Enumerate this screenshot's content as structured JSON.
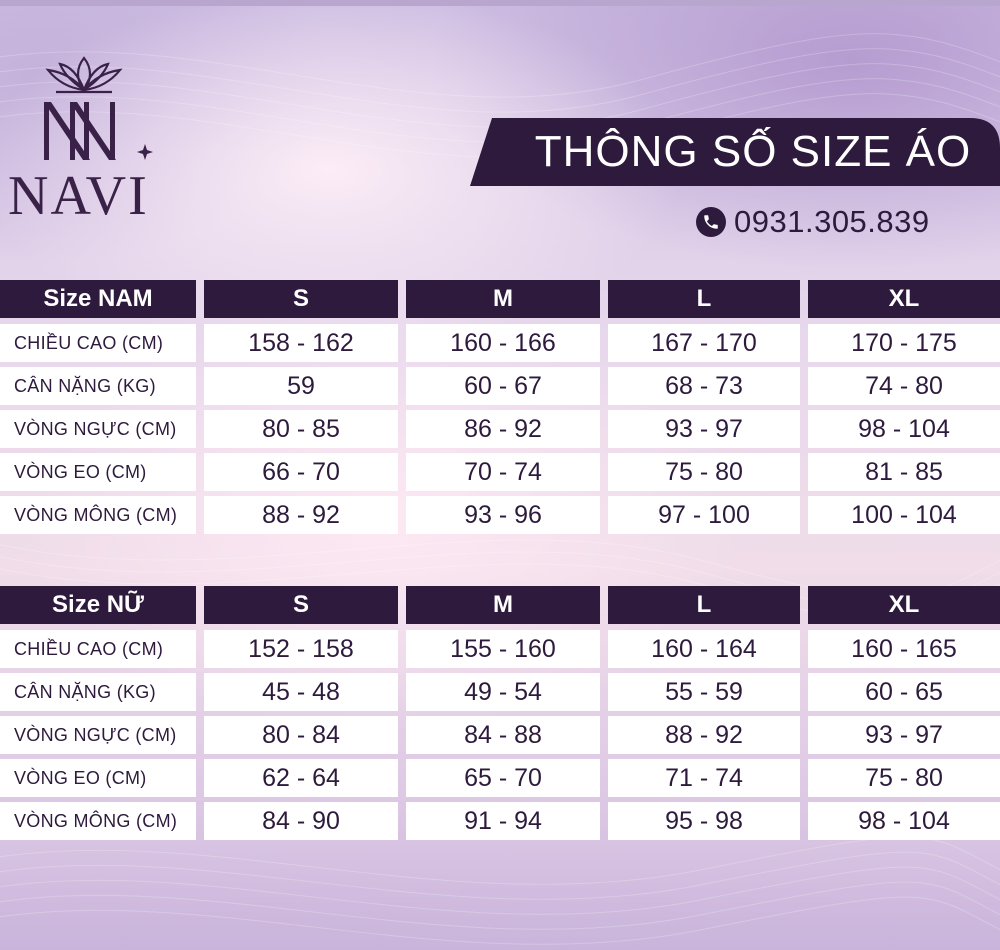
{
  "brand": {
    "name": "NAVI"
  },
  "title": "THÔNG SỐ SIZE ÁO",
  "phone": "0931.305.839",
  "colors": {
    "primary": "#2d1a3c",
    "cell_bg": "#ffffff"
  },
  "icons": {
    "phone": "phone-icon",
    "logo": "lotus-logo-icon"
  },
  "tables": {
    "nam": {
      "headers": [
        "Size NAM",
        "S",
        "M",
        "L",
        "XL"
      ],
      "rows": [
        [
          "CHIỀU CAO (CM)",
          "158 - 162",
          "160 - 166",
          "167 - 170",
          "170 - 175"
        ],
        [
          "CÂN NẶNG (KG)",
          "59",
          "60 - 67",
          "68 - 73",
          "74 - 80"
        ],
        [
          "VÒNG NGỰC (CM)",
          "80 - 85",
          "86 - 92",
          "93 - 97",
          "98 - 104"
        ],
        [
          "VÒNG EO (CM)",
          "66 - 70",
          "70 - 74",
          "75 - 80",
          "81 - 85"
        ],
        [
          "VÒNG MÔNG (CM)",
          "88 - 92",
          "93 - 96",
          "97 - 100",
          "100 - 104"
        ]
      ]
    },
    "nu": {
      "headers": [
        "Size NỮ",
        "S",
        "M",
        "L",
        "XL"
      ],
      "rows": [
        [
          "CHIỀU CAO (CM)",
          "152 - 158",
          "155 - 160",
          "160 - 164",
          "160 - 165"
        ],
        [
          "CÂN NẶNG (KG)",
          "45 - 48",
          "49 - 54",
          "55 - 59",
          "60 - 65"
        ],
        [
          "VÒNG NGỰC (CM)",
          "80 - 84",
          "84 - 88",
          "88 - 92",
          "93 - 97"
        ],
        [
          "VÒNG EO (CM)",
          "62 - 64",
          "65 - 70",
          "71 - 74",
          "75 - 80"
        ],
        [
          "VÒNG MÔNG (CM)",
          "84 - 90",
          "91 - 94",
          "95 - 98",
          "98 - 104"
        ]
      ]
    }
  }
}
